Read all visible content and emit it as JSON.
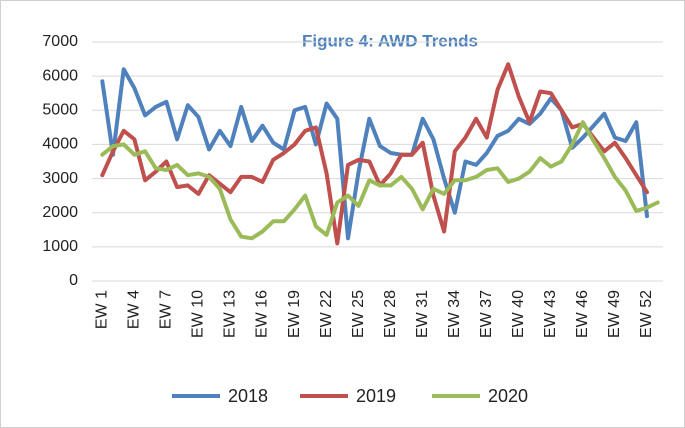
{
  "chart_data": {
    "type": "line",
    "title": "Figure 4: AWD Trends",
    "categories": [
      "EW 1",
      null,
      null,
      "EW 4",
      null,
      null,
      "EW 7",
      null,
      null,
      "EW 10",
      null,
      null,
      "EW 13",
      null,
      null,
      "EW 16",
      null,
      null,
      "EW 19",
      null,
      null,
      "EW 22",
      null,
      null,
      "EW 25",
      null,
      null,
      "EW 28",
      null,
      null,
      "EW 31",
      null,
      null,
      "EW 34",
      null,
      null,
      "EW 37",
      null,
      null,
      "EW 40",
      null,
      null,
      "EW 43",
      null,
      null,
      "EW 46",
      null,
      null,
      "EW 49",
      null,
      null,
      "EW 52",
      null
    ],
    "series": [
      {
        "name": "2018",
        "color": "#4f81bd",
        "values": [
          5850,
          3700,
          6200,
          5650,
          4850,
          5100,
          5250,
          4150,
          5150,
          4800,
          3850,
          4400,
          3950,
          5100,
          4100,
          4550,
          4050,
          3850,
          5000,
          5100,
          4000,
          5200,
          4750,
          1250,
          3200,
          4750,
          3950,
          3750,
          3700,
          3700,
          4750,
          4150,
          3000,
          2000,
          3500,
          3400,
          3750,
          4250,
          4400,
          4750,
          4600,
          4900,
          5350,
          5000,
          3900,
          4200,
          4550,
          4900,
          4200,
          4100,
          4650,
          1900,
          null
        ]
      },
      {
        "name": "2019",
        "color": "#c0504d",
        "values": [
          3100,
          3800,
          4400,
          4150,
          2950,
          3200,
          3500,
          2750,
          2800,
          2550,
          3100,
          2850,
          2600,
          3050,
          3050,
          2900,
          3550,
          3750,
          4000,
          4400,
          4500,
          3150,
          1100,
          3400,
          3550,
          3500,
          2800,
          3150,
          3700,
          3700,
          4050,
          2500,
          1450,
          3800,
          4200,
          4750,
          4200,
          5600,
          6350,
          5400,
          4650,
          5550,
          5500,
          5000,
          4500,
          4600,
          4200,
          3800,
          4050,
          3600,
          3100,
          2600,
          null
        ]
      },
      {
        "name": "2020",
        "color": "#9bbb59",
        "values": [
          3700,
          3950,
          4000,
          3700,
          3800,
          3300,
          3250,
          3400,
          3100,
          3150,
          3050,
          2700,
          1800,
          1300,
          1250,
          1450,
          1750,
          1750,
          2100,
          2500,
          1600,
          1350,
          2300,
          2500,
          2200,
          2950,
          2800,
          2800,
          3050,
          2700,
          2100,
          2700,
          2550,
          2950,
          2950,
          3050,
          3250,
          3300,
          2900,
          3000,
          3200,
          3600,
          3350,
          3500,
          4000,
          4650,
          4100,
          3600,
          3050,
          2650,
          2050,
          2150,
          2300
        ]
      }
    ],
    "ylim": [
      0,
      7000
    ],
    "yticks": [
      0,
      1000,
      2000,
      3000,
      4000,
      5000,
      6000,
      7000
    ],
    "grid": true,
    "legend": "bottom"
  }
}
